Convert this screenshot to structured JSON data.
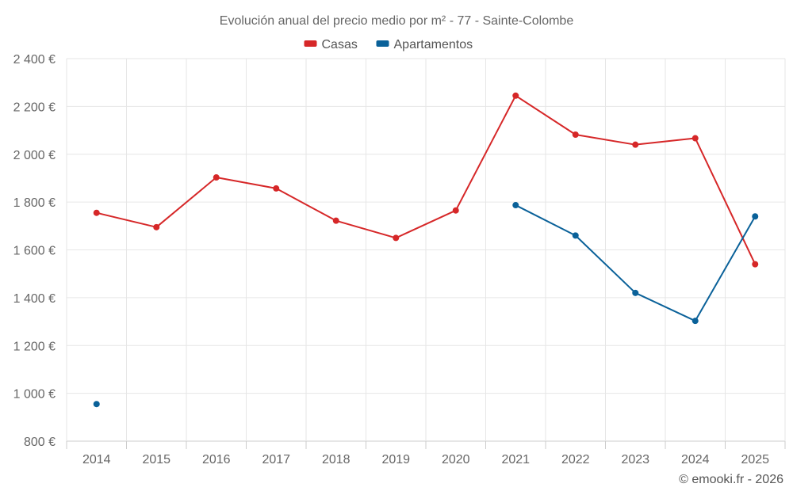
{
  "chart_data": {
    "type": "line",
    "title": "Evolución anual del precio medio por m² - 77 - Sainte-Colombe",
    "categories": [
      "2014",
      "2015",
      "2016",
      "2017",
      "2018",
      "2019",
      "2020",
      "2021",
      "2022",
      "2023",
      "2024",
      "2025"
    ],
    "series": [
      {
        "name": "Casas",
        "color": "#d62728",
        "values": [
          1755,
          1695,
          1903,
          1857,
          1722,
          1650,
          1765,
          2245,
          2082,
          2040,
          2067,
          1540
        ]
      },
      {
        "name": "Apartamentos",
        "color": "#0a6199",
        "values": [
          955,
          null,
          null,
          null,
          null,
          null,
          null,
          1787,
          1660,
          1420,
          1303,
          1740
        ]
      }
    ],
    "ylim": [
      800,
      2400
    ],
    "yticks": [
      800,
      1000,
      1200,
      1400,
      1600,
      1800,
      2000,
      2200,
      2400
    ],
    "ytick_labels": [
      "800 €",
      "1 000 €",
      "1 200 €",
      "1 400 €",
      "1 600 €",
      "1 800 €",
      "2 000 €",
      "2 200 €",
      "2 400 €"
    ],
    "xlabel": "",
    "ylabel": "",
    "grid": true,
    "legend_position": "top-center"
  },
  "credit": "© emooki.fr - 2026"
}
